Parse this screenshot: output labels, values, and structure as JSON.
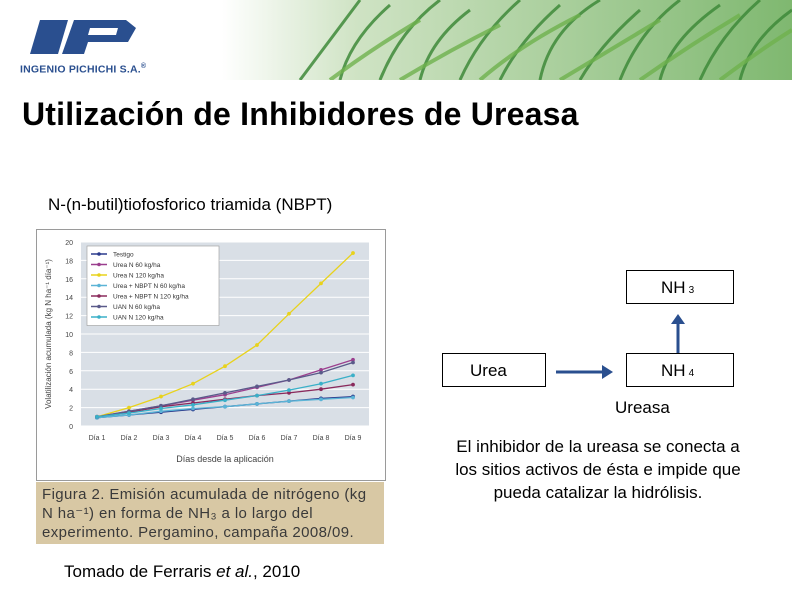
{
  "header": {
    "company": "INGENIO PICHICHI S.A.",
    "registered_mark": "®"
  },
  "slide": {
    "title": "Utilización de Inhibidores de Ureasa",
    "subtitle": "N-(n-butil)tiofosforico triamida (NBPT)",
    "figure_caption": "Figura 2. Emisión acumulada de nitrógeno (kg N ha⁻¹) en forma de NH₃ a lo largo del experimento. Pergamino, campaña 2008/09.",
    "source_prefix": "Tomado de Ferraris ",
    "source_italic": "et al.",
    "source_suffix": ", 2010",
    "diagram": {
      "urea": "Urea",
      "nh4": "NH",
      "nh4_sub": "4",
      "nh3": "NH",
      "nh3_sub": "3",
      "enzyme": "Ureasa"
    },
    "explanation": "El inhibidor de la ureasa se conecta a los sitios activos de ésta e impide que pueda catalizar la hidrólisis."
  },
  "colors": {
    "brand_blue": "#2a4f8f",
    "plot_bg": "#d9dfe6",
    "caption_bg": "#d8c8a4"
  },
  "chart_data": {
    "type": "line",
    "title": "",
    "xlabel": "Días desde la aplicación",
    "ylabel": "Volatilización acumulada (kg N ha⁻¹ día⁻¹)",
    "categories": [
      "Día 1",
      "Día 2",
      "Día 3",
      "Día 4",
      "Día 5",
      "Día 6",
      "Día 7",
      "Día 8",
      "Día 9"
    ],
    "ylim": [
      0,
      20
    ],
    "yticks": [
      0,
      2,
      4,
      6,
      8,
      10,
      12,
      14,
      16,
      18,
      20
    ],
    "grid": true,
    "legend_position": "top-left",
    "series": [
      {
        "name": "Testigo",
        "color": "#2a3a8c",
        "values": [
          0.9,
          1.2,
          1.5,
          1.8,
          2.1,
          2.4,
          2.7,
          3.0,
          3.2
        ]
      },
      {
        "name": "Urea N 60 kg/ha",
        "color": "#9b3f8e",
        "values": [
          1.0,
          1.6,
          2.2,
          2.8,
          3.4,
          4.2,
          5.0,
          6.1,
          7.2
        ]
      },
      {
        "name": "Urea N 120 kg/ha",
        "color": "#e8d21c",
        "values": [
          1.0,
          2.0,
          3.2,
          4.6,
          6.5,
          8.8,
          12.2,
          15.5,
          18.8
        ]
      },
      {
        "name": "Urea + NBPT N 60 kg/ha",
        "color": "#5bb4d6",
        "values": [
          0.9,
          1.2,
          1.6,
          1.9,
          2.1,
          2.4,
          2.7,
          2.9,
          3.1
        ]
      },
      {
        "name": "Urea + NBPT N 120 kg/ha",
        "color": "#8a2a5c",
        "values": [
          1.0,
          1.5,
          2.1,
          2.5,
          2.9,
          3.3,
          3.6,
          4.0,
          4.5
        ]
      },
      {
        "name": "UAN N 60 kg/ha",
        "color": "#5a5a8a",
        "values": [
          1.0,
          1.6,
          2.2,
          2.9,
          3.6,
          4.3,
          5.0,
          5.8,
          6.9
        ]
      },
      {
        "name": "UAN N 120 kg/ha",
        "color": "#3ab0c8",
        "values": [
          1.0,
          1.4,
          1.9,
          2.3,
          2.8,
          3.3,
          3.9,
          4.6,
          5.5
        ]
      }
    ]
  }
}
